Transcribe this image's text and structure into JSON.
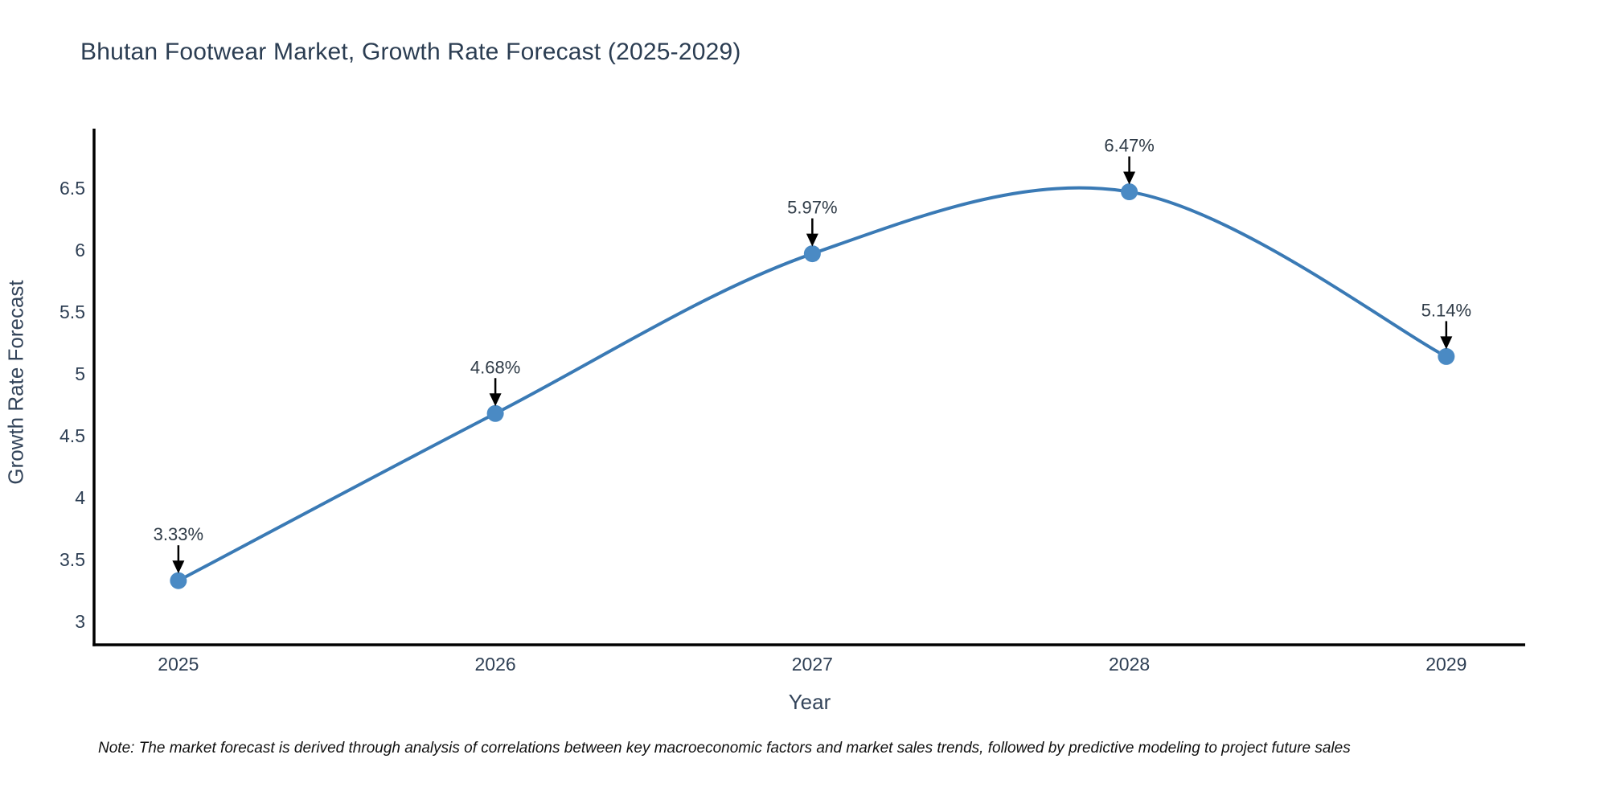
{
  "page": {
    "title": "Bhutan Footwear Market, Growth Rate Forecast (2025-2029)",
    "note": "Note: The market forecast is derived through analysis of correlations between key macroeconomic factors and market sales trends, followed by predictive modeling to project future sales"
  },
  "chart_data": {
    "type": "line",
    "title": "Bhutan Footwear Market, Growth Rate Forecast (2025-2029)",
    "xlabel": "Year",
    "ylabel": "Growth Rate Forecast",
    "x": [
      2025,
      2026,
      2027,
      2028,
      2029
    ],
    "y": [
      3.33,
      4.68,
      5.97,
      6.47,
      5.14
    ],
    "point_labels": [
      "3.33%",
      "4.68%",
      "5.97%",
      "6.47%",
      "5.14%"
    ],
    "xticks": [
      "2025",
      "2026",
      "2027",
      "2028",
      "2029"
    ],
    "yticks": [
      3,
      3.5,
      4,
      4.5,
      5,
      5.5,
      6,
      6.5
    ],
    "xlim": [
      2024.734,
      2029.249
    ],
    "ylim": [
      2.812,
      6.98
    ],
    "line_shape": "spline",
    "grid": false,
    "legend": "none",
    "colors": {
      "line": "#3a7ab5",
      "marker": "#4a8ac4",
      "axis": "#000000",
      "annotation_arrow": "#000000",
      "annotation_text": "#2f3b47",
      "tick_text": "#2e3f54",
      "title_text": "#2b3d52"
    }
  }
}
